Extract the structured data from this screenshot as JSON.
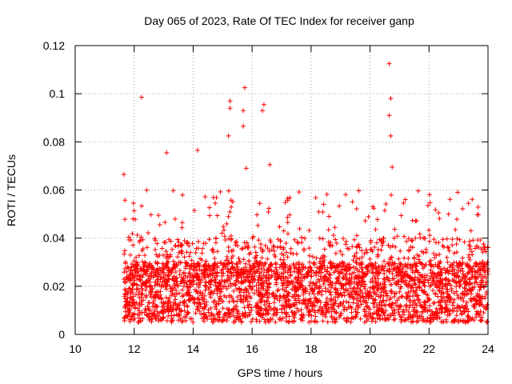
{
  "chart_data": {
    "type": "scatter",
    "title": "Day 065 of 2023, Rate Of TEC Index for receiver ganp",
    "xlabel": "GPS time / hours",
    "ylabel": "ROTI / TECUs",
    "xlim": [
      10,
      24
    ],
    "ylim": [
      0,
      0.12
    ],
    "x_ticks": [
      10,
      12,
      14,
      16,
      18,
      20,
      22,
      24
    ],
    "x_tick_labels": [
      "10",
      "12",
      "14",
      "16",
      "18",
      "20",
      "22",
      "24"
    ],
    "y_ticks": [
      0,
      0.02,
      0.04,
      0.06,
      0.08,
      0.1,
      0.12
    ],
    "y_tick_labels": [
      "0",
      "0.02",
      "0.04",
      "0.06",
      "0.08",
      "0.1",
      "0.12"
    ],
    "grid": true,
    "marker": "+",
    "series": [
      {
        "name": "ROTI",
        "color": "#ff0000",
        "notable_points": [
          {
            "x": 11.65,
            "y": 0.0665
          },
          {
            "x": 12.25,
            "y": 0.0985
          },
          {
            "x": 13.1,
            "y": 0.0755
          },
          {
            "x": 14.15,
            "y": 0.0765
          },
          {
            "x": 15.25,
            "y": 0.097
          },
          {
            "x": 15.25,
            "y": 0.094
          },
          {
            "x": 15.2,
            "y": 0.0825
          },
          {
            "x": 15.75,
            "y": 0.1025
          },
          {
            "x": 15.7,
            "y": 0.093
          },
          {
            "x": 15.7,
            "y": 0.0865
          },
          {
            "x": 16.4,
            "y": 0.0955
          },
          {
            "x": 16.35,
            "y": 0.093
          },
          {
            "x": 20.65,
            "y": 0.1125
          },
          {
            "x": 20.7,
            "y": 0.098
          },
          {
            "x": 20.65,
            "y": 0.091
          },
          {
            "x": 20.7,
            "y": 0.0825
          },
          {
            "x": 20.75,
            "y": 0.0695
          },
          {
            "x": 15.8,
            "y": 0.069
          },
          {
            "x": 16.6,
            "y": 0.0705
          }
        ],
        "bulk_description": {
          "x_range": [
            11.65,
            24
          ],
          "typical_y_range": [
            0.005,
            0.03
          ],
          "frequent_spikes_up_to": 0.06
        }
      }
    ]
  }
}
